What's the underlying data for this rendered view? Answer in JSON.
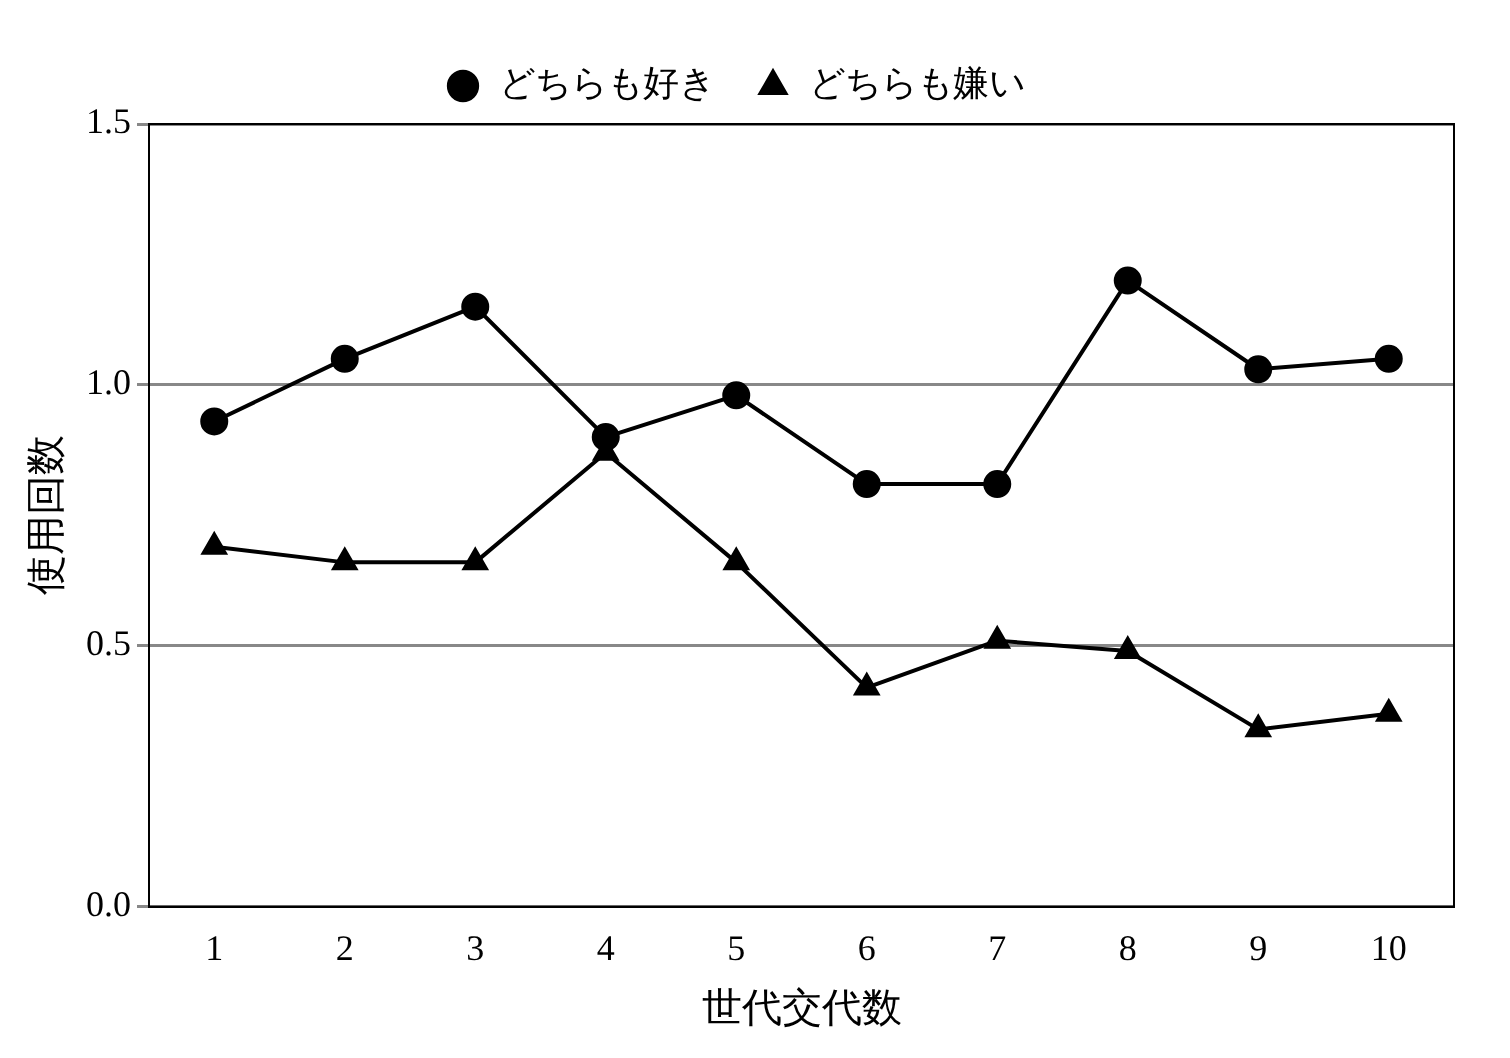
{
  "chart_data": {
    "type": "line",
    "xlabel": "世代交代数",
    "ylabel": "使用回数",
    "categories": [
      "1",
      "2",
      "3",
      "4",
      "5",
      "6",
      "7",
      "8",
      "9",
      "10"
    ],
    "series": [
      {
        "name": "どちらも好き",
        "color": "#000000",
        "marker": "circle",
        "values": [
          0.93,
          1.05,
          1.15,
          0.9,
          0.98,
          0.81,
          0.81,
          1.2,
          1.03,
          1.05
        ]
      },
      {
        "name": "どちらも嫌い",
        "color": "#000000",
        "marker": "triangle",
        "values": [
          0.69,
          0.66,
          0.66,
          0.87,
          0.66,
          0.42,
          0.51,
          0.49,
          0.34,
          0.37
        ]
      }
    ],
    "ylim": [
      0,
      1.5
    ],
    "yticks": [
      {
        "value": 0,
        "label": "0.0"
      },
      {
        "value": 0.5,
        "label": "0.5"
      },
      {
        "value": 1,
        "label": "1.0"
      },
      {
        "value": 1.5,
        "label": "1.5"
      }
    ],
    "grid": "y",
    "legend": "top",
    "line_style": "solid"
  }
}
